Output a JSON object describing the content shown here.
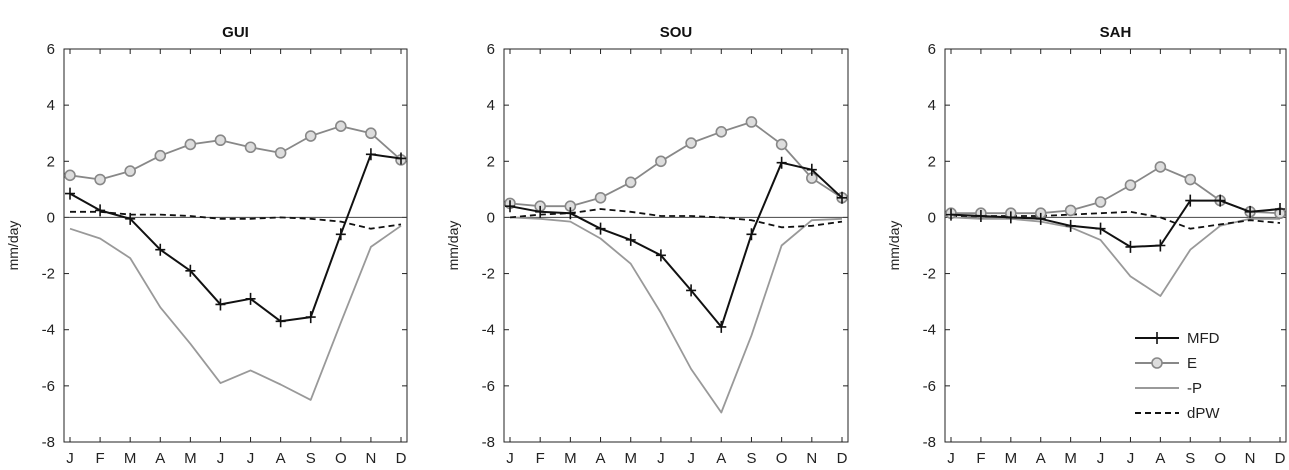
{
  "chart_data": [
    {
      "type": "line",
      "title": "GUI",
      "ylabel": "mm/day",
      "xlabel": "",
      "categories": [
        "J",
        "F",
        "M",
        "A",
        "M",
        "J",
        "J",
        "A",
        "S",
        "O",
        "N",
        "D"
      ],
      "ylim": [
        -8,
        6
      ],
      "yticks": [
        -8,
        -6,
        -4,
        -2,
        0,
        2,
        4,
        6
      ],
      "zero_line": true,
      "legend": false,
      "series": [
        {
          "name": "MFD",
          "values": [
            0.85,
            0.25,
            -0.05,
            -1.15,
            -1.9,
            -3.1,
            -2.9,
            -3.7,
            -3.55,
            -0.6,
            2.25,
            2.1
          ]
        },
        {
          "name": "E",
          "values": [
            1.5,
            1.35,
            1.65,
            2.2,
            2.6,
            2.75,
            2.5,
            2.3,
            2.9,
            3.25,
            3.0,
            2.05
          ]
        },
        {
          "name": "-P",
          "values": [
            -0.4,
            -0.75,
            -1.45,
            -3.2,
            -4.5,
            -5.9,
            -5.45,
            -5.95,
            -6.5,
            -3.75,
            -1.05,
            -0.3
          ]
        },
        {
          "name": "dPW",
          "values": [
            0.2,
            0.2,
            0.1,
            0.1,
            0.05,
            -0.05,
            -0.05,
            0.0,
            -0.05,
            -0.15,
            -0.4,
            -0.25
          ]
        }
      ]
    },
    {
      "type": "line",
      "title": "SOU",
      "ylabel": "mm/day",
      "xlabel": "",
      "categories": [
        "J",
        "F",
        "M",
        "A",
        "M",
        "J",
        "J",
        "A",
        "S",
        "O",
        "N",
        "D"
      ],
      "ylim": [
        -8,
        6
      ],
      "yticks": [
        -8,
        -6,
        -4,
        -2,
        0,
        2,
        4,
        6
      ],
      "zero_line": true,
      "legend": false,
      "series": [
        {
          "name": "MFD",
          "values": [
            0.4,
            0.2,
            0.15,
            -0.4,
            -0.8,
            -1.35,
            -2.6,
            -3.9,
            -0.6,
            1.95,
            1.7,
            0.7
          ]
        },
        {
          "name": "E",
          "values": [
            0.5,
            0.4,
            0.4,
            0.7,
            1.25,
            2.0,
            2.65,
            3.05,
            3.4,
            2.6,
            1.4,
            0.7
          ]
        },
        {
          "name": "-P",
          "values": [
            0.0,
            -0.05,
            -0.15,
            -0.75,
            -1.65,
            -3.4,
            -5.4,
            -6.95,
            -4.2,
            -1.0,
            -0.1,
            -0.05
          ]
        },
        {
          "name": "dPW",
          "values": [
            0.0,
            0.1,
            0.15,
            0.3,
            0.2,
            0.05,
            0.05,
            0.0,
            -0.1,
            -0.35,
            -0.3,
            -0.15
          ]
        }
      ]
    },
    {
      "type": "line",
      "title": "SAH",
      "ylabel": "mm/day",
      "xlabel": "",
      "categories": [
        "J",
        "F",
        "M",
        "A",
        "M",
        "J",
        "J",
        "A",
        "S",
        "O",
        "N",
        "D"
      ],
      "ylim": [
        -8,
        6
      ],
      "yticks": [
        -8,
        -6,
        -4,
        -2,
        0,
        2,
        4,
        6
      ],
      "zero_line": true,
      "legend": true,
      "legend_position": "bottom-right",
      "series": [
        {
          "name": "MFD",
          "values": [
            0.1,
            0.05,
            0.0,
            -0.05,
            -0.3,
            -0.4,
            -1.05,
            -1.0,
            0.6,
            0.6,
            0.2,
            0.3
          ]
        },
        {
          "name": "E",
          "values": [
            0.15,
            0.15,
            0.15,
            0.15,
            0.25,
            0.55,
            1.15,
            1.8,
            1.35,
            0.6,
            0.2,
            0.15
          ]
        },
        {
          "name": "-P",
          "values": [
            0.0,
            -0.05,
            -0.05,
            -0.15,
            -0.35,
            -0.8,
            -2.1,
            -2.8,
            -1.15,
            -0.3,
            -0.05,
            -0.05
          ]
        },
        {
          "name": "dPW",
          "values": [
            0.05,
            0.05,
            0.05,
            0.05,
            0.1,
            0.15,
            0.2,
            0.0,
            -0.4,
            -0.25,
            -0.1,
            -0.2
          ]
        }
      ]
    }
  ],
  "series_styles": {
    "MFD": {
      "color": "#111111",
      "dash": "solid",
      "marker": "plus"
    },
    "E": {
      "color": "#888888",
      "dash": "solid",
      "marker": "circle"
    },
    "-P": {
      "color": "#999999",
      "dash": "solid",
      "marker": "none"
    },
    "dPW": {
      "color": "#111111",
      "dash": "dashed",
      "marker": "none"
    }
  }
}
